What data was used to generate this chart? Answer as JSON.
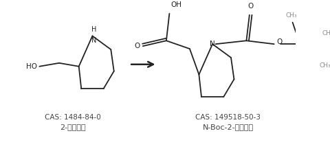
{
  "background_color": "#ffffff",
  "left_cas": "CAS: 1484-84-0",
  "left_name": "2-哌啶乙醇",
  "right_cas": "CAS: 149518-50-3",
  "right_name": "N-Boc-2-哌啶乙酸",
  "font_size_cas": 7.5,
  "font_size_name": 8.0,
  "text_color": "#444444",
  "line_color": "#222222",
  "light_color": "#888888"
}
